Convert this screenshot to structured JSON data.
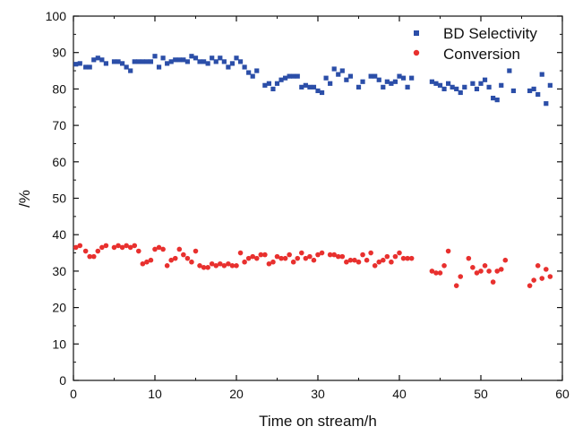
{
  "chart_data": {
    "type": "scatter",
    "xlabel": "Time on stream/h",
    "ylabel": "/%",
    "xlim": [
      0,
      60
    ],
    "ylim": [
      0,
      100
    ],
    "xticks": [
      0,
      10,
      20,
      30,
      40,
      50,
      60
    ],
    "yticks": [
      0,
      10,
      20,
      30,
      40,
      50,
      60,
      70,
      80,
      90,
      100
    ],
    "grid": false,
    "legend_position": "top-right",
    "series": [
      {
        "name": "BD Selectivity",
        "marker": "square",
        "color": "#2b4ea8",
        "points": [
          [
            0.3,
            86.8
          ],
          [
            0.8,
            87.0
          ],
          [
            1.5,
            86.0
          ],
          [
            2.0,
            86.0
          ],
          [
            2.5,
            88.0
          ],
          [
            3.0,
            88.5
          ],
          [
            3.5,
            88.0
          ],
          [
            4.0,
            87.0
          ],
          [
            5.0,
            87.5
          ],
          [
            5.5,
            87.5
          ],
          [
            6.0,
            87.0
          ],
          [
            6.5,
            86.0
          ],
          [
            7.0,
            85.0
          ],
          [
            7.5,
            87.5
          ],
          [
            8.0,
            87.5
          ],
          [
            8.5,
            87.5
          ],
          [
            9.0,
            87.5
          ],
          [
            9.5,
            87.5
          ],
          [
            10.0,
            89.0
          ],
          [
            10.5,
            86.0
          ],
          [
            11.0,
            88.5
          ],
          [
            11.5,
            87.0
          ],
          [
            12.0,
            87.5
          ],
          [
            12.5,
            88.0
          ],
          [
            13.0,
            88.0
          ],
          [
            13.5,
            88.0
          ],
          [
            14.0,
            87.5
          ],
          [
            14.5,
            89.0
          ],
          [
            15.0,
            88.5
          ],
          [
            15.5,
            87.5
          ],
          [
            16.0,
            87.5
          ],
          [
            16.5,
            87.0
          ],
          [
            17.0,
            88.5
          ],
          [
            17.5,
            87.5
          ],
          [
            18.0,
            88.5
          ],
          [
            18.5,
            87.5
          ],
          [
            19.0,
            86.0
          ],
          [
            19.5,
            87.0
          ],
          [
            20.0,
            88.5
          ],
          [
            20.5,
            87.5
          ],
          [
            21.0,
            86.0
          ],
          [
            21.5,
            84.5
          ],
          [
            22.0,
            83.5
          ],
          [
            22.5,
            85.0
          ],
          [
            23.5,
            81.0
          ],
          [
            24.0,
            81.5
          ],
          [
            24.5,
            80.0
          ],
          [
            25.0,
            81.5
          ],
          [
            25.5,
            82.5
          ],
          [
            26.0,
            83.0
          ],
          [
            26.5,
            83.5
          ],
          [
            27.0,
            83.5
          ],
          [
            27.5,
            83.5
          ],
          [
            28.0,
            80.5
          ],
          [
            28.5,
            81.0
          ],
          [
            29.0,
            80.5
          ],
          [
            29.5,
            80.5
          ],
          [
            30.0,
            79.5
          ],
          [
            30.5,
            79.0
          ],
          [
            31.0,
            83.0
          ],
          [
            31.5,
            81.5
          ],
          [
            32.0,
            85.5
          ],
          [
            32.5,
            84.0
          ],
          [
            33.0,
            85.0
          ],
          [
            33.5,
            82.5
          ],
          [
            34.0,
            83.5
          ],
          [
            35.0,
            80.5
          ],
          [
            35.5,
            82.0
          ],
          [
            36.5,
            83.5
          ],
          [
            37.0,
            83.5
          ],
          [
            37.5,
            82.5
          ],
          [
            38.0,
            80.5
          ],
          [
            38.5,
            82.0
          ],
          [
            39.0,
            81.5
          ],
          [
            39.5,
            82.0
          ],
          [
            40.0,
            83.5
          ],
          [
            40.5,
            83.0
          ],
          [
            41.0,
            80.5
          ],
          [
            41.5,
            83.0
          ],
          [
            44.0,
            82.0
          ],
          [
            44.5,
            81.5
          ],
          [
            45.0,
            81.0
          ],
          [
            45.5,
            80.0
          ],
          [
            46.0,
            81.5
          ],
          [
            46.5,
            80.5
          ],
          [
            47.0,
            80.0
          ],
          [
            47.5,
            79.0
          ],
          [
            48.0,
            80.5
          ],
          [
            49.0,
            81.5
          ],
          [
            49.5,
            80.0
          ],
          [
            50.0,
            81.5
          ],
          [
            50.5,
            82.5
          ],
          [
            51.0,
            80.5
          ],
          [
            51.5,
            77.5
          ],
          [
            52.0,
            77.0
          ],
          [
            52.5,
            81.0
          ],
          [
            53.5,
            85.0
          ],
          [
            54.0,
            79.5
          ],
          [
            56.0,
            79.5
          ],
          [
            56.5,
            80.0
          ],
          [
            57.0,
            78.5
          ],
          [
            57.5,
            84.0
          ],
          [
            58.0,
            76.0
          ],
          [
            58.5,
            81.0
          ]
        ]
      },
      {
        "name": "Conversion",
        "marker": "circle",
        "color": "#e8302e",
        "points": [
          [
            0.3,
            36.5
          ],
          [
            0.8,
            37.0
          ],
          [
            1.5,
            35.5
          ],
          [
            2.0,
            34.0
          ],
          [
            2.5,
            34.0
          ],
          [
            3.0,
            35.5
          ],
          [
            3.5,
            36.5
          ],
          [
            4.0,
            37.0
          ],
          [
            5.0,
            36.5
          ],
          [
            5.5,
            37.0
          ],
          [
            6.0,
            36.5
          ],
          [
            6.5,
            37.0
          ],
          [
            7.0,
            36.5
          ],
          [
            7.5,
            37.0
          ],
          [
            8.0,
            35.5
          ],
          [
            8.5,
            32.0
          ],
          [
            9.0,
            32.5
          ],
          [
            9.5,
            33.0
          ],
          [
            10.0,
            36.0
          ],
          [
            10.5,
            36.5
          ],
          [
            11.0,
            36.0
          ],
          [
            11.5,
            31.5
          ],
          [
            12.0,
            33.0
          ],
          [
            12.5,
            33.5
          ],
          [
            13.0,
            36.0
          ],
          [
            13.5,
            34.5
          ],
          [
            14.0,
            33.5
          ],
          [
            14.5,
            32.5
          ],
          [
            15.0,
            35.5
          ],
          [
            15.5,
            31.5
          ],
          [
            16.0,
            31.0
          ],
          [
            16.5,
            31.0
          ],
          [
            17.0,
            32.0
          ],
          [
            17.5,
            31.5
          ],
          [
            18.0,
            32.0
          ],
          [
            18.5,
            31.5
          ],
          [
            19.0,
            32.0
          ],
          [
            19.5,
            31.5
          ],
          [
            20.0,
            31.5
          ],
          [
            20.5,
            35.0
          ],
          [
            21.0,
            32.5
          ],
          [
            21.5,
            33.5
          ],
          [
            22.0,
            34.0
          ],
          [
            22.5,
            33.5
          ],
          [
            23.0,
            34.5
          ],
          [
            23.5,
            34.5
          ],
          [
            24.0,
            32.0
          ],
          [
            24.5,
            32.5
          ],
          [
            25.0,
            34.0
          ],
          [
            25.5,
            33.5
          ],
          [
            26.0,
            33.5
          ],
          [
            26.5,
            34.5
          ],
          [
            27.0,
            32.5
          ],
          [
            27.5,
            33.5
          ],
          [
            28.0,
            35.0
          ],
          [
            28.5,
            33.5
          ],
          [
            29.0,
            34.0
          ],
          [
            29.5,
            33.0
          ],
          [
            30.0,
            34.5
          ],
          [
            30.5,
            35.0
          ],
          [
            31.5,
            34.5
          ],
          [
            32.0,
            34.5
          ],
          [
            32.5,
            34.0
          ],
          [
            33.0,
            34.0
          ],
          [
            33.5,
            32.5
          ],
          [
            34.0,
            33.0
          ],
          [
            34.5,
            33.0
          ],
          [
            35.0,
            32.5
          ],
          [
            35.5,
            34.5
          ],
          [
            36.0,
            33.0
          ],
          [
            36.5,
            35.0
          ],
          [
            37.0,
            31.5
          ],
          [
            37.5,
            32.5
          ],
          [
            38.0,
            33.0
          ],
          [
            38.5,
            34.0
          ],
          [
            39.0,
            32.5
          ],
          [
            39.5,
            34.0
          ],
          [
            40.0,
            35.0
          ],
          [
            40.5,
            33.5
          ],
          [
            41.0,
            33.5
          ],
          [
            41.5,
            33.5
          ],
          [
            44.0,
            30.0
          ],
          [
            44.5,
            29.5
          ],
          [
            45.0,
            29.5
          ],
          [
            45.5,
            31.5
          ],
          [
            46.0,
            35.5
          ],
          [
            47.0,
            26.0
          ],
          [
            47.5,
            28.5
          ],
          [
            48.5,
            33.5
          ],
          [
            49.0,
            31.0
          ],
          [
            49.5,
            29.5
          ],
          [
            50.0,
            30.0
          ],
          [
            50.5,
            31.5
          ],
          [
            51.0,
            30.0
          ],
          [
            51.5,
            27.0
          ],
          [
            52.0,
            30.0
          ],
          [
            52.5,
            30.5
          ],
          [
            53.0,
            33.0
          ],
          [
            56.0,
            26.0
          ],
          [
            56.5,
            27.5
          ],
          [
            57.0,
            31.5
          ],
          [
            57.5,
            28.0
          ],
          [
            58.0,
            30.5
          ],
          [
            58.5,
            28.5
          ]
        ]
      }
    ]
  }
}
